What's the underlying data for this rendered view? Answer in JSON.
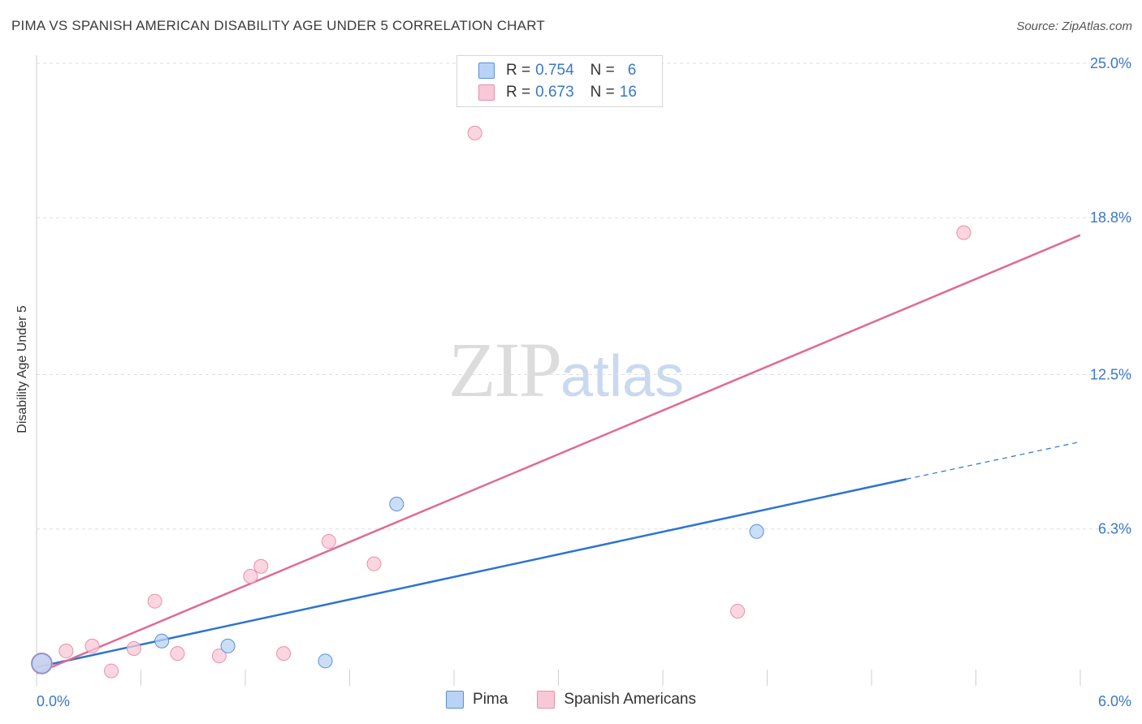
{
  "title": "PIMA VS SPANISH AMERICAN DISABILITY AGE UNDER 5 CORRELATION CHART",
  "source": "Source: ZipAtlas.com",
  "watermark": {
    "part1": "ZIP",
    "part2": "atlas"
  },
  "legend": {
    "r_label": "R =",
    "n_label": "N =",
    "rows": [
      {
        "r": "0.754",
        "n": "6"
      },
      {
        "r": "0.673",
        "n": "16"
      }
    ]
  },
  "bottom_legend": [
    "Pima",
    "Spanish Americans"
  ],
  "colors": {
    "pima_fill": "#b8d3f4",
    "pima_stroke": "#5b8fd6",
    "pima_line": "#2e74d0",
    "spanish_fill": "#f9c8d6",
    "spanish_stroke": "#e88fac",
    "spanish_line": "#e06a94",
    "tick_label": "#3a78c8"
  },
  "chart_data": {
    "type": "scatter",
    "title": "PIMA VS SPANISH AMERICAN DISABILITY AGE UNDER 5 CORRELATION CHART",
    "xlabel": "",
    "ylabel": "Disability Age Under 5",
    "xlim": [
      0,
      6
    ],
    "ylim": [
      0,
      25
    ],
    "x_tick_labels": [
      "0.0%",
      "6.0%"
    ],
    "y_ticks": [
      6.3,
      12.5,
      18.8,
      25.0
    ],
    "y_tick_labels": [
      "6.3%",
      "12.5%",
      "18.8%",
      "25.0%"
    ],
    "grid": true,
    "legend_position": "top-center",
    "series": [
      {
        "name": "Pima",
        "points": [
          {
            "x": 0.03,
            "y": 0.9
          },
          {
            "x": 0.72,
            "y": 1.8
          },
          {
            "x": 1.1,
            "y": 1.6
          },
          {
            "x": 1.66,
            "y": 1.0
          },
          {
            "x": 2.07,
            "y": 7.3
          },
          {
            "x": 4.14,
            "y": 6.2
          }
        ],
        "trend": {
          "x0": 0.0,
          "y0": 0.75,
          "x1": 5.0,
          "y1": 8.3,
          "x_dashed_end": 6.0,
          "y_dashed_end": 9.8
        }
      },
      {
        "name": "Spanish Americans",
        "points": [
          {
            "x": 0.03,
            "y": 0.9
          },
          {
            "x": 0.17,
            "y": 1.4
          },
          {
            "x": 0.32,
            "y": 1.6
          },
          {
            "x": 0.43,
            "y": 0.6
          },
          {
            "x": 0.56,
            "y": 1.5
          },
          {
            "x": 0.68,
            "y": 3.4
          },
          {
            "x": 0.81,
            "y": 1.3
          },
          {
            "x": 1.05,
            "y": 1.2
          },
          {
            "x": 1.23,
            "y": 4.4
          },
          {
            "x": 1.29,
            "y": 4.8
          },
          {
            "x": 1.42,
            "y": 1.3
          },
          {
            "x": 1.68,
            "y": 5.8
          },
          {
            "x": 1.94,
            "y": 4.9
          },
          {
            "x": 2.52,
            "y": 22.2
          },
          {
            "x": 4.03,
            "y": 3.0
          },
          {
            "x": 5.33,
            "y": 18.2
          }
        ],
        "trend": {
          "x0": 0.0,
          "y0": 0.5,
          "x1": 6.0,
          "y1": 18.1
        }
      }
    ]
  }
}
